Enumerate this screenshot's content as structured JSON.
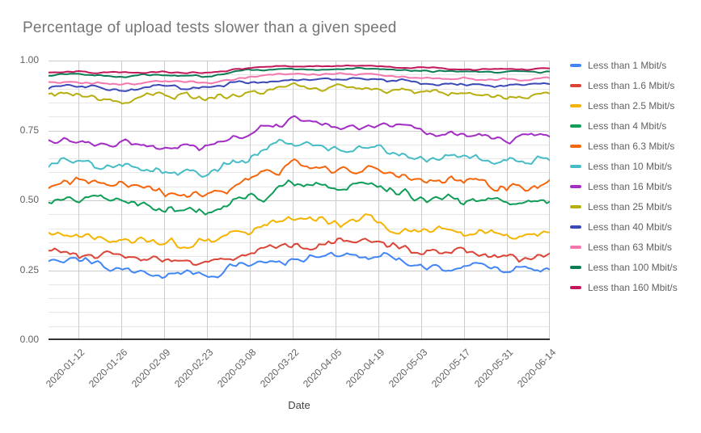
{
  "title": "Percentage of upload tests slower than a given speed",
  "axes": {
    "x": {
      "title": "Date",
      "ticks": [
        "2020-01-12",
        "2020-01-26",
        "2020-02-09",
        "2020-02-23",
        "2020-03-08",
        "2020-03-22",
        "2020-04-05",
        "2020-04-19",
        "2020-05-03",
        "2020-05-17",
        "2020-05-31",
        "2020-06-14"
      ]
    },
    "y": {
      "ticks": [
        "0.00",
        "0.25",
        "0.50",
        "0.75",
        "1.00"
      ],
      "tick_values": [
        0,
        0.25,
        0.5,
        0.75,
        1
      ],
      "min": 0,
      "max": 1,
      "minor_grid_step": 0.05
    }
  },
  "chart_data": {
    "type": "line",
    "title": "Percentage of upload tests slower than a given speed",
    "xlabel": "Date",
    "ylabel": "",
    "ylim": [
      0,
      1
    ],
    "grid": true,
    "legend_position": "right",
    "x": [
      "2020-01-12",
      "2020-01-26",
      "2020-02-09",
      "2020-02-23",
      "2020-03-08",
      "2020-03-22",
      "2020-04-05",
      "2020-04-19",
      "2020-05-03",
      "2020-05-17",
      "2020-05-31",
      "2020-06-14"
    ],
    "series": [
      {
        "name": "Less than 1 Mbit/s",
        "color": "#4285F4",
        "values": [
          0.28,
          0.26,
          0.235,
          0.235,
          0.27,
          0.295,
          0.3,
          0.305,
          0.27,
          0.26,
          0.25,
          0.255
        ]
      },
      {
        "name": "Less than 1.6 Mbit/s",
        "color": "#DB4437",
        "values": [
          0.315,
          0.3,
          0.28,
          0.275,
          0.315,
          0.35,
          0.34,
          0.35,
          0.315,
          0.31,
          0.3,
          0.3
        ]
      },
      {
        "name": "Less than 2.5 Mbit/s",
        "color": "#F4B400",
        "values": [
          0.375,
          0.36,
          0.34,
          0.345,
          0.385,
          0.43,
          0.415,
          0.425,
          0.39,
          0.38,
          0.37,
          0.365
        ]
      },
      {
        "name": "Less than 4 Mbit/s",
        "color": "#0F9D58",
        "values": [
          0.5,
          0.49,
          0.46,
          0.46,
          0.51,
          0.56,
          0.545,
          0.55,
          0.51,
          0.5,
          0.49,
          0.495
        ]
      },
      {
        "name": "Less than 6.3 Mbit/s",
        "color": "#F4650C",
        "values": [
          0.555,
          0.545,
          0.52,
          0.515,
          0.57,
          0.625,
          0.6,
          0.615,
          0.575,
          0.565,
          0.55,
          0.555
        ]
      },
      {
        "name": "Less than 10 Mbit/s",
        "color": "#46BDC6",
        "values": [
          0.635,
          0.625,
          0.6,
          0.6,
          0.655,
          0.715,
          0.69,
          0.7,
          0.66,
          0.655,
          0.64,
          0.645
        ]
      },
      {
        "name": "Less than 16 Mbit/s",
        "color": "#A32CC4",
        "values": [
          0.715,
          0.705,
          0.695,
          0.7,
          0.745,
          0.785,
          0.765,
          0.775,
          0.75,
          0.73,
          0.72,
          0.74
        ]
      },
      {
        "name": "Less than 25 Mbit/s",
        "color": "#B7AE0F",
        "values": [
          0.875,
          0.86,
          0.875,
          0.865,
          0.895,
          0.91,
          0.905,
          0.905,
          0.89,
          0.885,
          0.88,
          0.875
        ]
      },
      {
        "name": "Less than 40 Mbit/s",
        "color": "#3B49B8",
        "values": [
          0.905,
          0.895,
          0.905,
          0.9,
          0.925,
          0.935,
          0.93,
          0.935,
          0.92,
          0.915,
          0.91,
          0.915
        ]
      },
      {
        "name": "Less than 63 Mbit/s",
        "color": "#F478B0",
        "values": [
          0.925,
          0.92,
          0.925,
          0.92,
          0.945,
          0.95,
          0.95,
          0.95,
          0.94,
          0.935,
          0.93,
          0.935
        ]
      },
      {
        "name": "Less than 100 Mbit/s",
        "color": "#0C7D53",
        "values": [
          0.95,
          0.945,
          0.95,
          0.945,
          0.965,
          0.97,
          0.97,
          0.97,
          0.965,
          0.96,
          0.96,
          0.96
        ]
      },
      {
        "name": "Less than 160 Mbit/s",
        "color": "#C2185B",
        "values": [
          0.96,
          0.955,
          0.96,
          0.955,
          0.975,
          0.98,
          0.98,
          0.98,
          0.975,
          0.97,
          0.97,
          0.97
        ]
      }
    ]
  }
}
